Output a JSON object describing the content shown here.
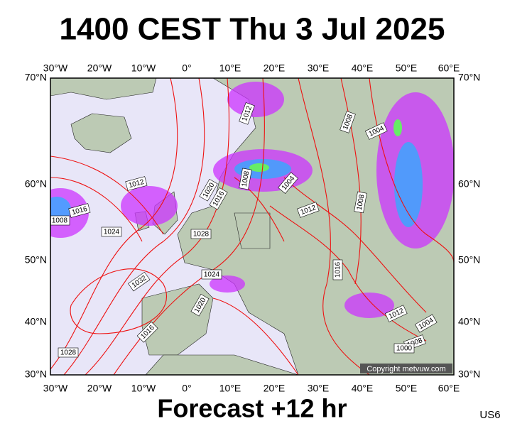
{
  "header": {
    "title": "1400 CEST Thu 3 Jul 2025"
  },
  "map": {
    "lon_labels": [
      "30°W",
      "20°W",
      "10°W",
      "0°",
      "10°E",
      "20°E",
      "30°E",
      "40°E",
      "50°E",
      "60°E"
    ],
    "lat_labels": [
      "70°N",
      "60°N",
      "50°N",
      "40°N",
      "30°N"
    ],
    "contour_labels": [
      "1012",
      "1008",
      "1004",
      "1012",
      "1008",
      "1020",
      "1016",
      "1004",
      "1008",
      "1016",
      "1012",
      "1008",
      "1024",
      "1028",
      "1024",
      "1016",
      "1032",
      "1020",
      "1012",
      "1004",
      "1016",
      "1008",
      "1000",
      "1028"
    ],
    "copyright": "Copyright metvuw.com"
  },
  "footer": {
    "forecast": "Forecast +12 hr",
    "code": "US6"
  }
}
